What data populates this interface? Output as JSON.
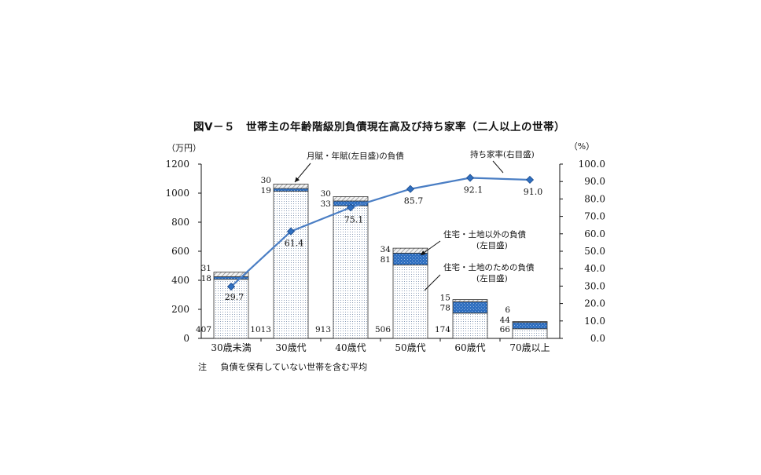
{
  "title": "図Ⅴ－５　世帯主の年齢階級別負債現在高及び持ち家率（二人以上の世帯）",
  "footnote": {
    "mark": "注",
    "text": "負債を保有していない世帯を含む平均"
  },
  "chart_data": {
    "type": "bar",
    "title": "図Ⅴ－５　世帯主の年齢階級別負債現在高及び持ち家率（二人以上の世帯）",
    "categories": [
      "30歳未満",
      "30歳代",
      "40歳代",
      "50歳代",
      "60歳代",
      "70歳以上"
    ],
    "stacked": true,
    "left_axis": {
      "unit_label": "（万円）",
      "ylim": [
        0,
        1200
      ],
      "ticks": [
        0,
        200,
        400,
        600,
        800,
        1000,
        1200
      ]
    },
    "right_axis": {
      "unit_label": "（%）",
      "ylim": [
        0,
        100
      ],
      "ticks": [
        "0.0",
        "10.0",
        "20.0",
        "30.0",
        "40.0",
        "50.0",
        "60.0",
        "70.0",
        "80.0",
        "90.0",
        "100.0"
      ]
    },
    "series": [
      {
        "key": "housing",
        "axis": "left",
        "color": "#c9d8ec",
        "values": [
          407,
          1013,
          913,
          506,
          174,
          66
        ]
      },
      {
        "key": "other",
        "axis": "left",
        "color": "#2f6fc0",
        "values": [
          18,
          19,
          33,
          81,
          78,
          44
        ]
      },
      {
        "key": "monthly",
        "axis": "left",
        "color": "#bdbdbd",
        "values": [
          31,
          30,
          30,
          34,
          15,
          6
        ]
      },
      {
        "key": "ownership",
        "type": "line",
        "axis": "right",
        "color": "#4a7ec4",
        "values": [
          29.7,
          61.4,
          75.1,
          85.7,
          92.1,
          91.0
        ],
        "labels": [
          "29.7",
          "61.4",
          "75.1",
          "85.7",
          "92.1",
          "91.0"
        ]
      }
    ],
    "annotations": {
      "monthly": "月賦・年賦(左目盛)の負債",
      "ownership": "持ち家率(右目盛)",
      "other_line1": "住宅・土地以外の負債",
      "other_line2": "(左目盛)",
      "housing_line1": "住宅・土地のための負債",
      "housing_line2": "(左目盛)"
    },
    "grid": false
  }
}
